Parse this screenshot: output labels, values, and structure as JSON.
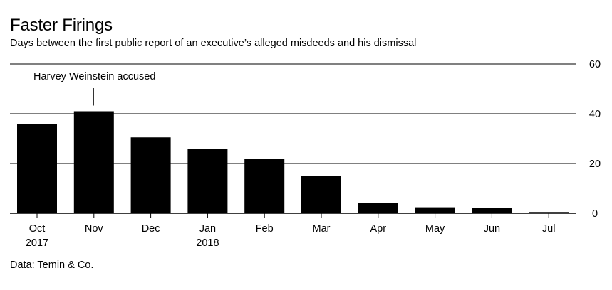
{
  "title": "Faster Firings",
  "subtitle": "Days between the first public report of an executive’s alleged misdeeds and his dismissal",
  "source": "Data: Temin & Co.",
  "chart_data": {
    "type": "bar",
    "categories": [
      "Oct",
      "Nov",
      "Dec",
      "Jan",
      "Feb",
      "Mar",
      "Apr",
      "May",
      "Jun",
      "Jul"
    ],
    "category_sublabels": [
      "2017",
      "",
      "",
      "2018",
      "",
      "",
      "",
      "",
      "",
      ""
    ],
    "values": [
      36,
      41,
      30.5,
      25.8,
      21.8,
      15,
      4,
      2.4,
      2.2,
      0.5
    ],
    "ylim": [
      0,
      60
    ],
    "yticks": [
      0,
      20,
      40,
      60
    ],
    "y_axis_side": "right",
    "grid": true,
    "bar_color": "#000000",
    "annotations": [
      {
        "category": "Nov",
        "text": "Harvey Weinstein accused"
      }
    ]
  }
}
